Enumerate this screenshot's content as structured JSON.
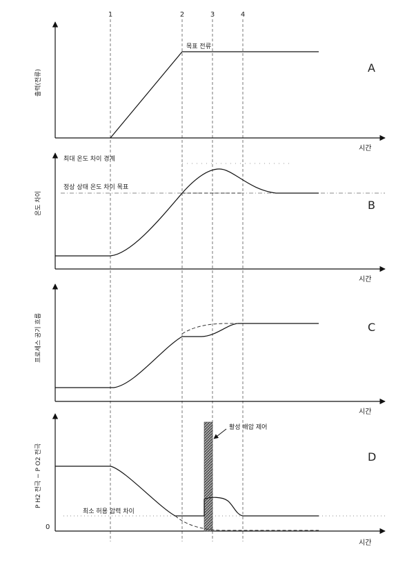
{
  "markers": [
    "1",
    "2",
    "3",
    "4"
  ],
  "panels": [
    {
      "id": "A",
      "letter": "A",
      "ylabel": "출력(전류)",
      "xlabel": "시간",
      "annotations": [
        "목표 전류"
      ]
    },
    {
      "id": "B",
      "letter": "B",
      "ylabel": "온도 차이",
      "xlabel": "시간",
      "annotations": [
        "최대 온도 차이 경계",
        "정상 상태 온도 차이 목표"
      ]
    },
    {
      "id": "C",
      "letter": "C",
      "ylabel": "프로세스 공기 흐름",
      "xlabel": "시간",
      "annotations": []
    },
    {
      "id": "D",
      "letter": "D",
      "ylabel": "P H2 전극 − P O2 전극",
      "xlabel": "시간",
      "annotations": [
        "활성 배압 제어",
        "최소 허용 압력 차이"
      ],
      "zero_label": "0"
    }
  ]
}
